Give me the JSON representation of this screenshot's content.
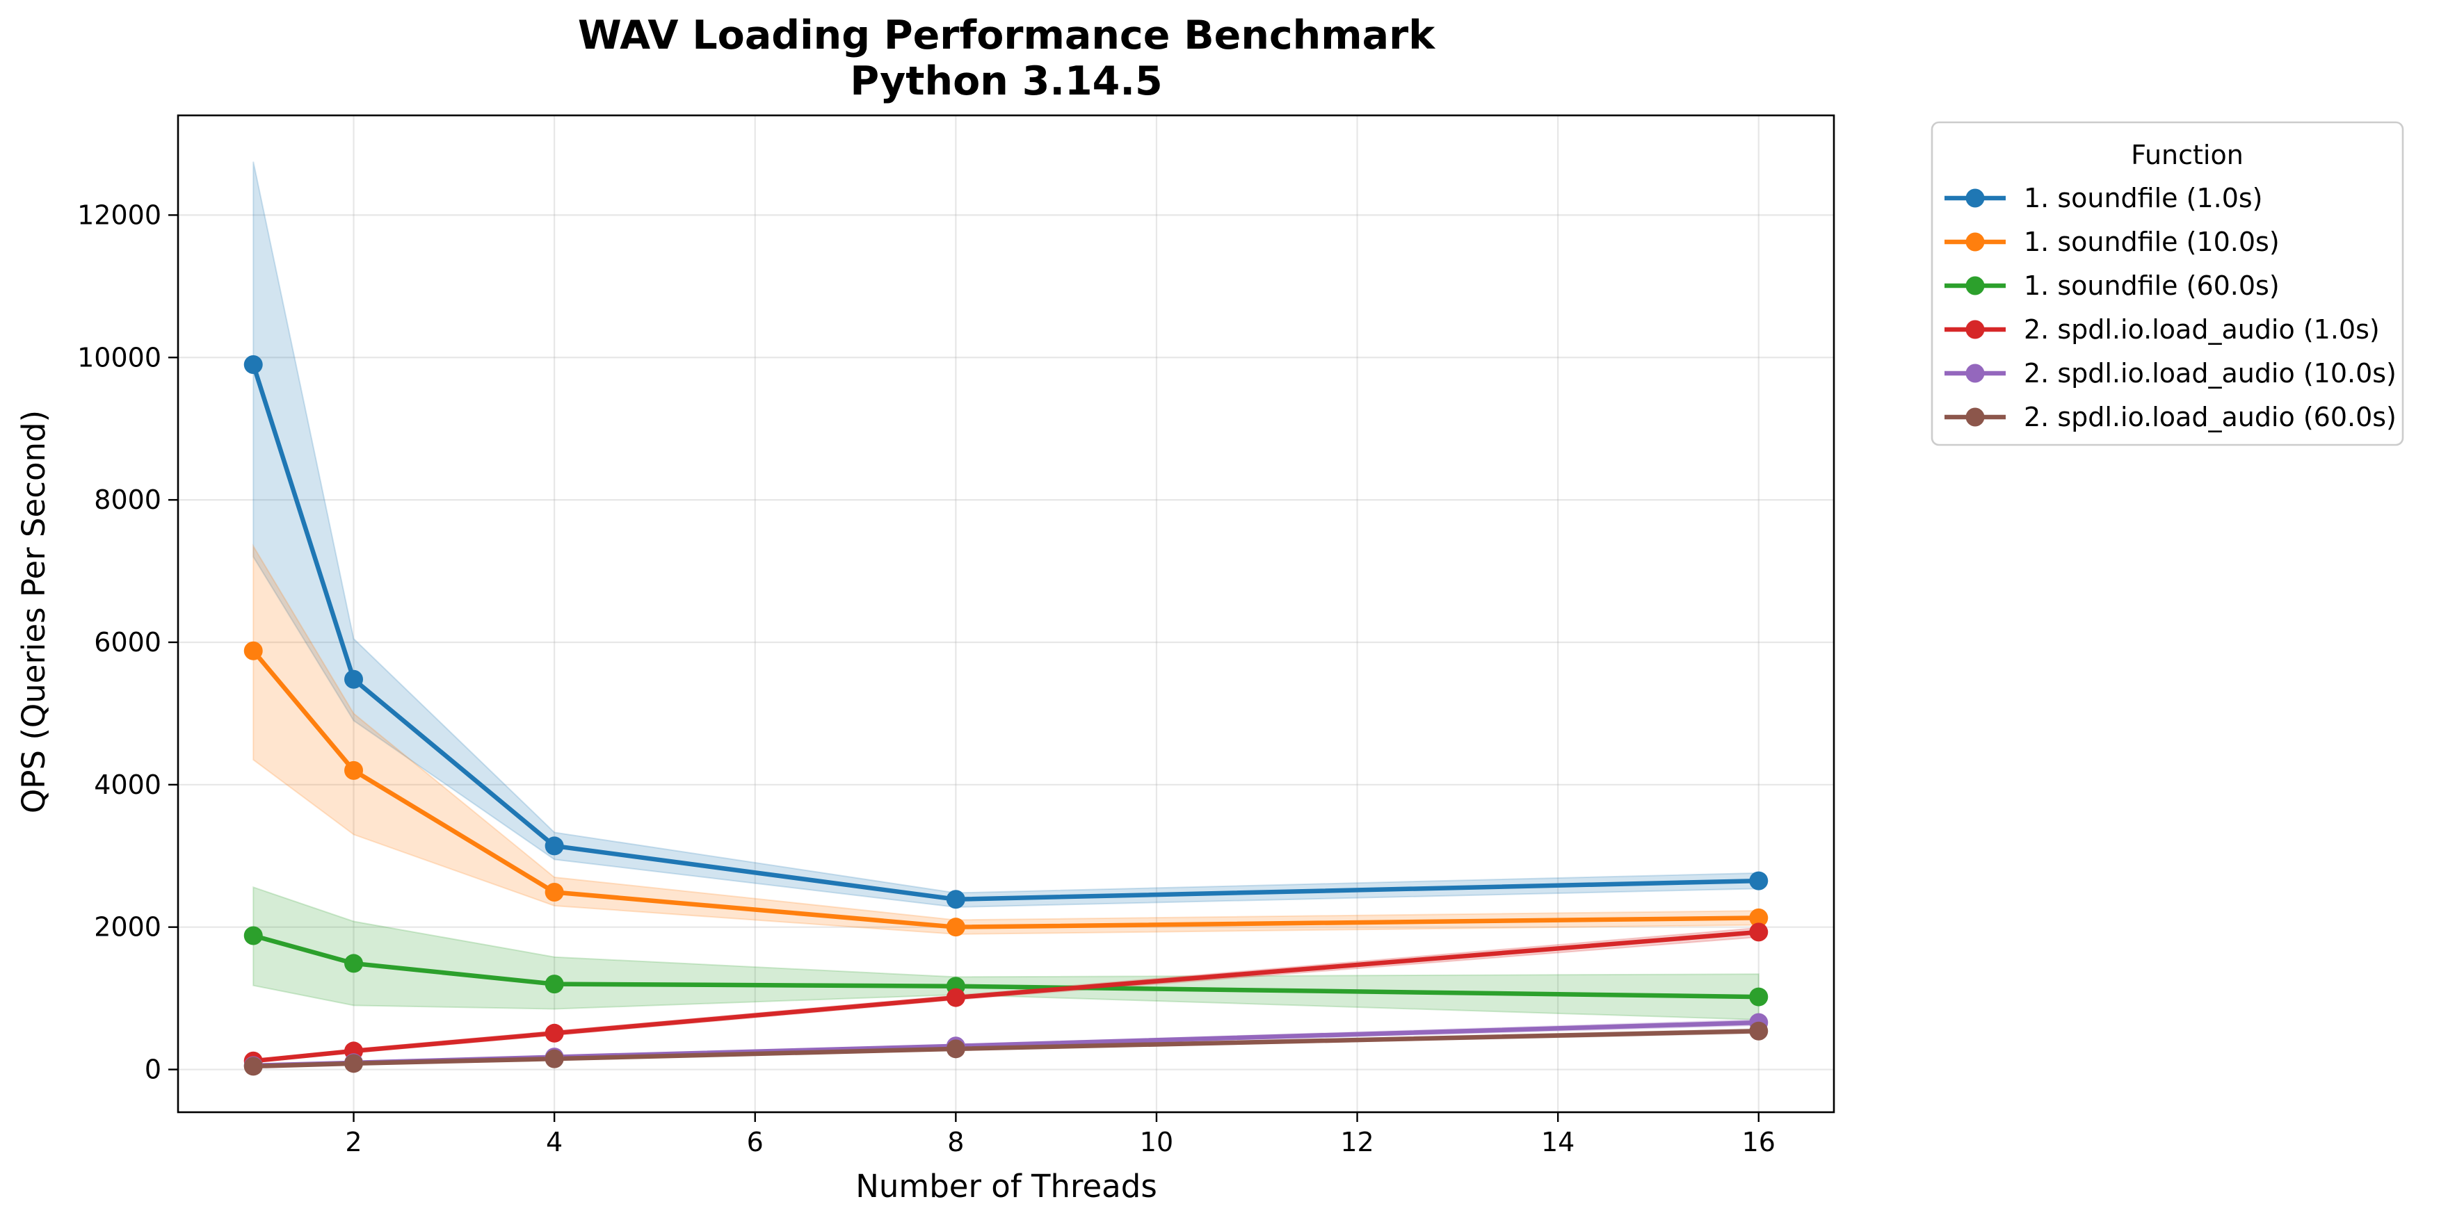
{
  "chart_data": {
    "type": "line",
    "title_lines": [
      "WAV Loading Performance Benchmark",
      "Python 3.14.5"
    ],
    "xlabel": "Number of Threads",
    "ylabel": "QPS (Queries Per Second)",
    "xlim": [
      0.25,
      16.75
    ],
    "ylim": [
      -600,
      13400
    ],
    "xticks": [
      2,
      4,
      6,
      8,
      10,
      12,
      14,
      16
    ],
    "xtick_labels": [
      "2",
      "4",
      "6",
      "8",
      "10",
      "12",
      "14",
      "16"
    ],
    "yticks": [
      0,
      2000,
      4000,
      6000,
      8000,
      10000,
      12000
    ],
    "ytick_labels": [
      "0",
      "2000",
      "4000",
      "6000",
      "8000",
      "10000",
      "12000"
    ],
    "grid": true,
    "legend_title": "Function",
    "legend_position": "outside upper right",
    "x": [
      1,
      2,
      4,
      8,
      16
    ],
    "series": [
      {
        "name": "1. soundfile (1.0s)",
        "color": "#1f77b4",
        "values": [
          9900,
          5480,
          3140,
          2390,
          2650
        ],
        "lower": [
          7200,
          4900,
          2950,
          2280,
          2540
        ],
        "upper": [
          12750,
          6050,
          3330,
          2480,
          2760
        ]
      },
      {
        "name": "1. soundfile (10.0s)",
        "color": "#ff7f0e",
        "values": [
          5880,
          4200,
          2490,
          2000,
          2130
        ],
        "lower": [
          4350,
          3300,
          2300,
          1900,
          2030
        ],
        "upper": [
          7350,
          5000,
          2700,
          2100,
          2230
        ]
      },
      {
        "name": "1. soundfile (60.0s)",
        "color": "#2ca02c",
        "values": [
          1880,
          1490,
          1200,
          1170,
          1020
        ],
        "lower": [
          1180,
          900,
          850,
          1050,
          700
        ],
        "upper": [
          2560,
          2080,
          1580,
          1300,
          1340
        ]
      },
      {
        "name": "2. spdl.io.load_audio (1.0s)",
        "color": "#d62728",
        "values": [
          120,
          260,
          510,
          1010,
          1930
        ],
        "lower": [
          100,
          235,
          480,
          980,
          1860
        ],
        "upper": [
          140,
          285,
          540,
          1040,
          1990
        ]
      },
      {
        "name": "2. spdl.io.load_audio (10.0s)",
        "color": "#9467bd",
        "values": [
          55,
          95,
          175,
          330,
          660
        ],
        "lower": [
          45,
          85,
          160,
          310,
          620
        ],
        "upper": [
          65,
          105,
          190,
          350,
          700
        ]
      },
      {
        "name": "2. spdl.io.load_audio (60.0s)",
        "color": "#8c564b",
        "values": [
          45,
          85,
          150,
          290,
          540
        ],
        "lower": [
          35,
          75,
          138,
          275,
          510
        ],
        "upper": [
          55,
          95,
          162,
          305,
          570
        ]
      }
    ]
  }
}
